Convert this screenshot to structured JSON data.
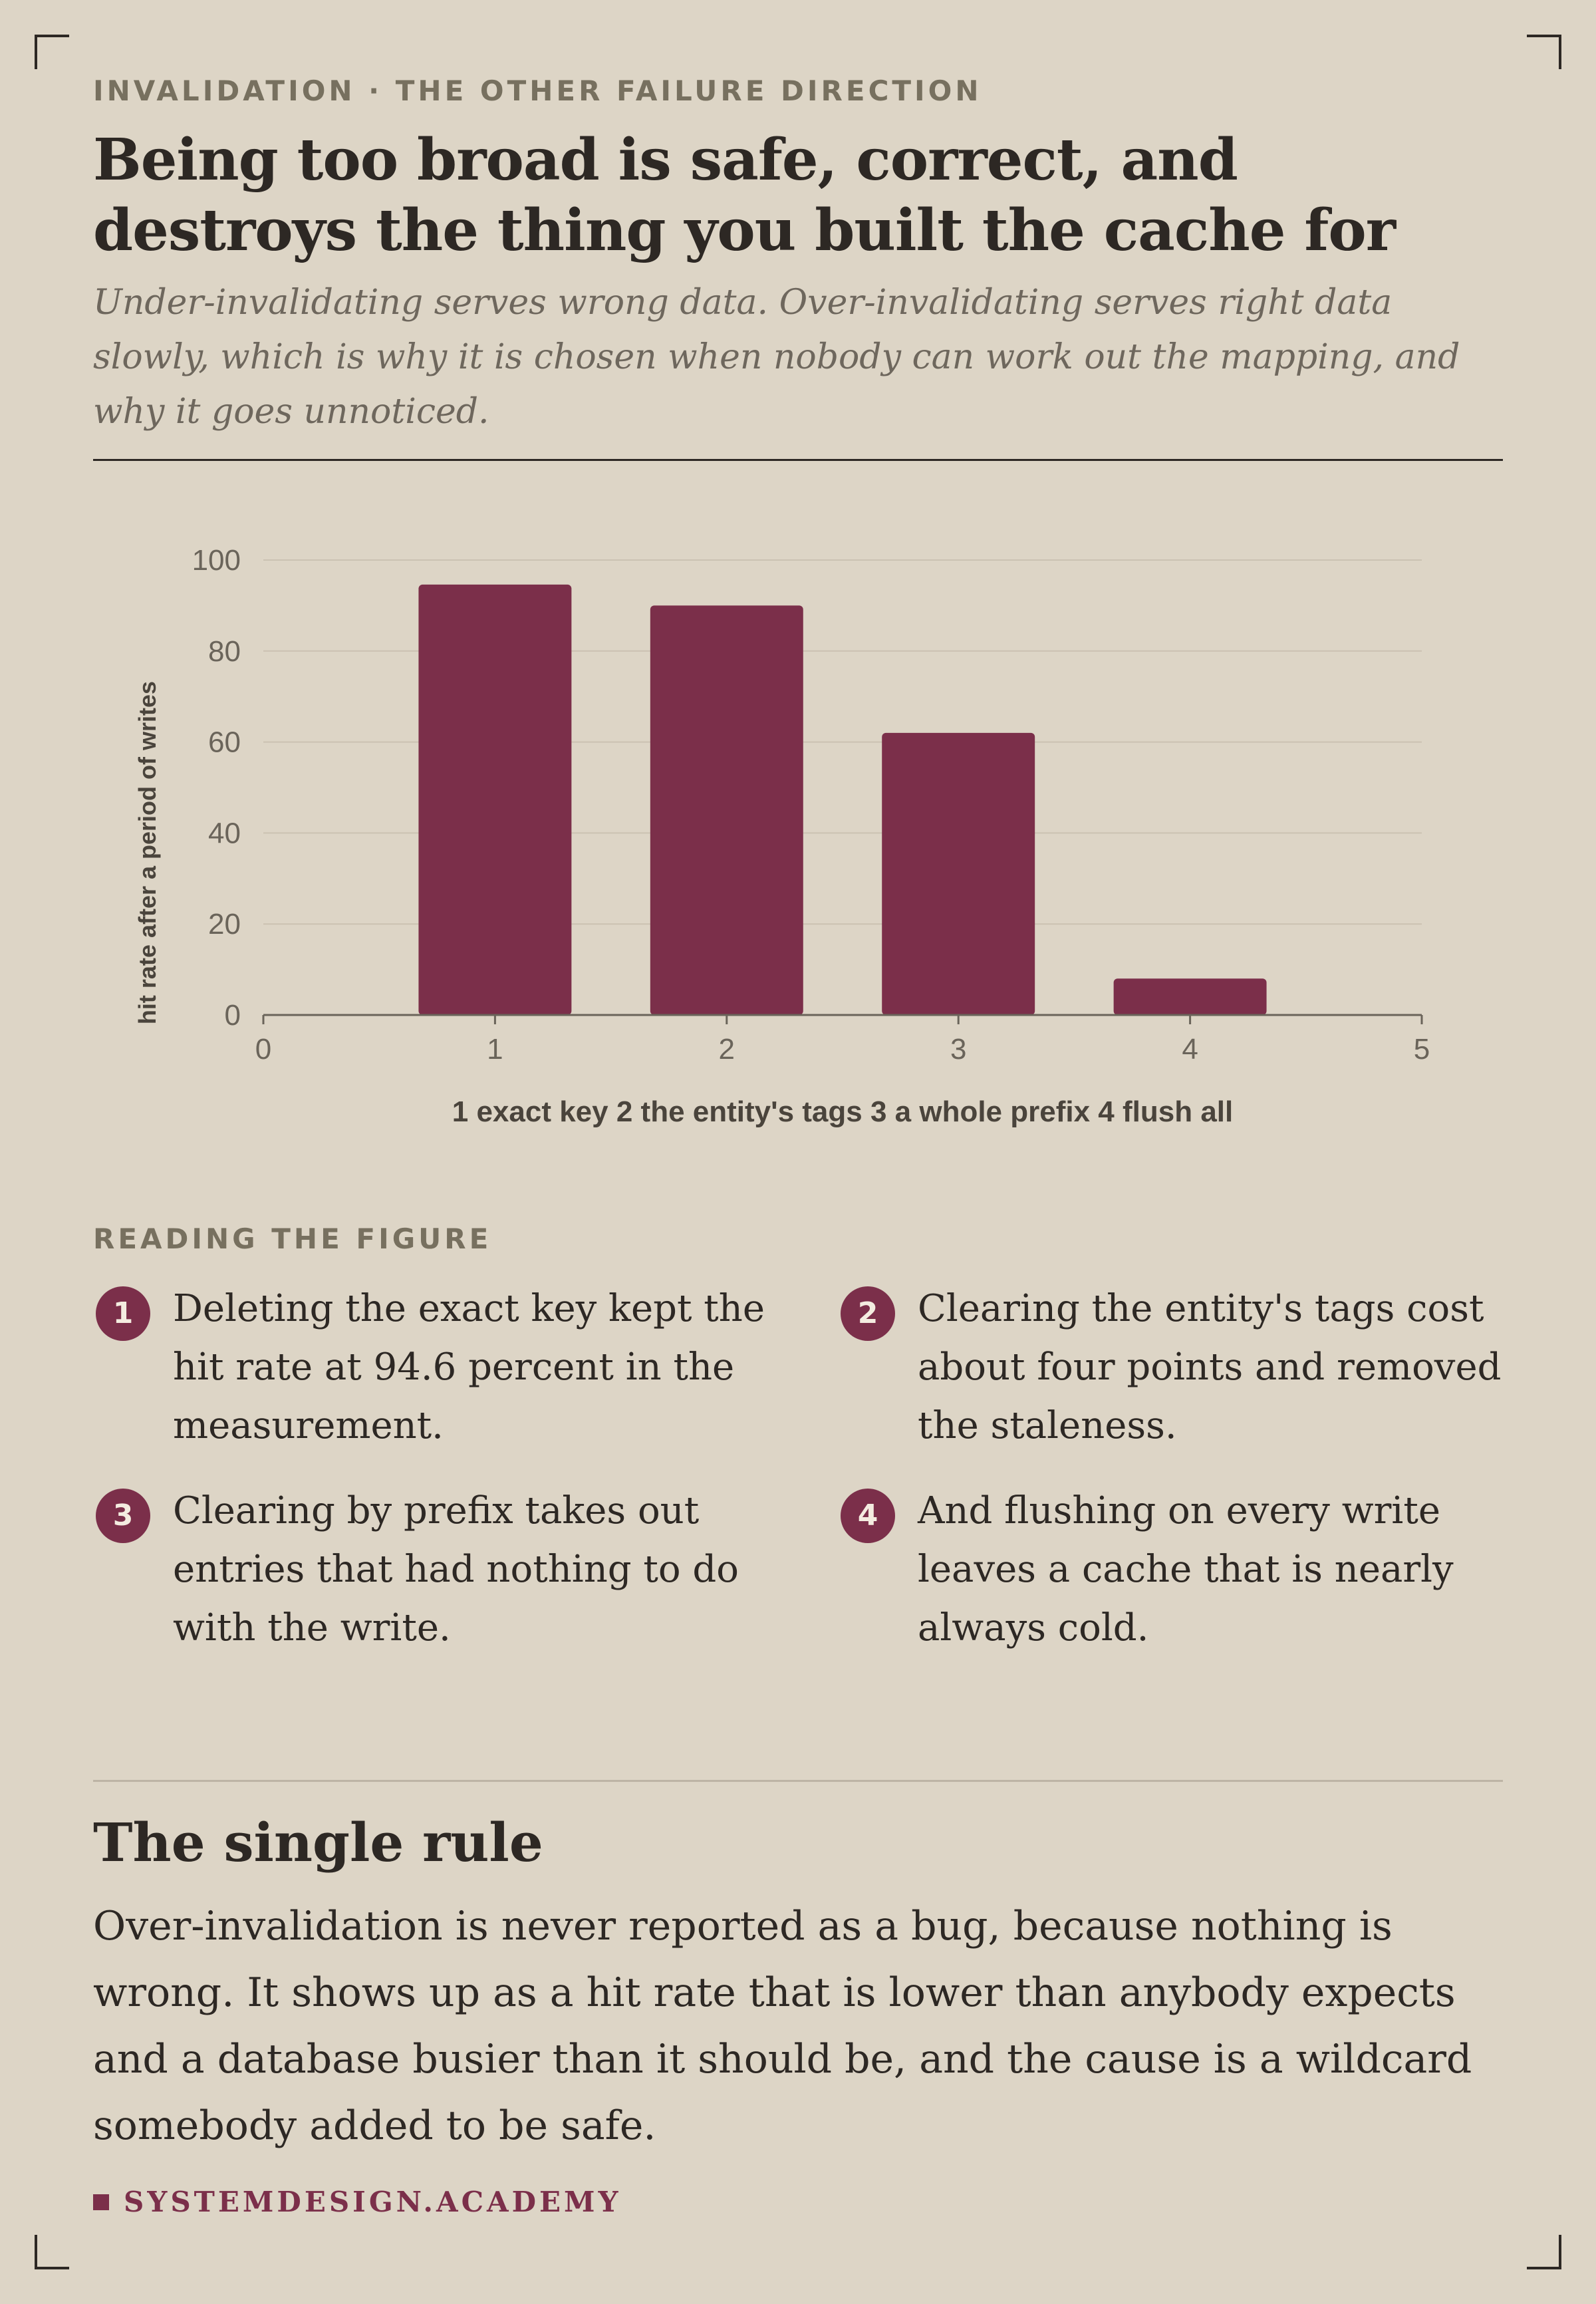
{
  "header": {
    "eyebrow": "INVALIDATION · THE OTHER FAILURE DIRECTION",
    "title": "Being too broad is safe, correct, and destroys the thing you built the cache for",
    "subtitle": "Under-invalidating serves wrong data. Over-invalidating serves right data slowly, which is why it is chosen when nobody can work out the mapping, and why it goes unnoticed."
  },
  "chart_data": {
    "type": "bar",
    "x": [
      1,
      2,
      3,
      4
    ],
    "values": [
      94.6,
      90,
      62,
      8
    ],
    "xlim": [
      0,
      5
    ],
    "ylim": [
      0,
      100
    ],
    "xticks": [
      0,
      1,
      2,
      3,
      4,
      5
    ],
    "yticks": [
      0,
      20,
      40,
      60,
      80,
      100
    ],
    "xlabel": "1 exact key 2 the entity's tags 3 a whole prefix 4 flush all",
    "ylabel": "hit rate after a period of writes",
    "grid": true,
    "bar_color": "#7b2f4a"
  },
  "reading": {
    "label": "READING THE FIGURE",
    "items": [
      {
        "num": "1",
        "text": "Deleting the exact key kept the hit rate at 94.6 percent in the measurement."
      },
      {
        "num": "2",
        "text": "Clearing the entity's tags cost about four points and removed the staleness."
      },
      {
        "num": "3",
        "text": "Clearing by prefix takes out entries that had nothing to do with the write."
      },
      {
        "num": "4",
        "text": "And flushing on every write leaves a cache that is nearly always cold."
      }
    ]
  },
  "rule": {
    "heading": "The single rule",
    "body": "Over-invalidation is never reported as a bug, because nothing is wrong. It shows up as a hit rate that is lower than anybody expects and a database busier than it should be, and the cause is a wildcard somebody added to be safe."
  },
  "footer": {
    "brand": "SYSTEMDESIGN.ACADEMY"
  },
  "colors": {
    "accent": "#7b2f4a",
    "background": "#ddd5c6",
    "ink": "#2d2824"
  }
}
